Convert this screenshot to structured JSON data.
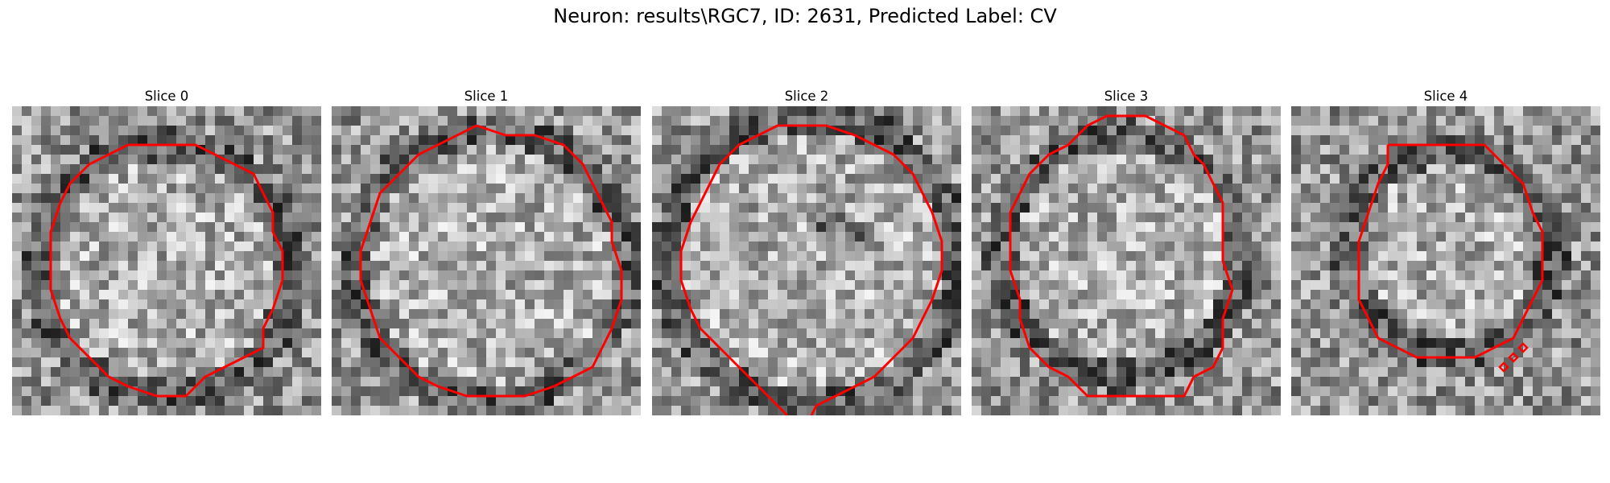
{
  "figure": {
    "title": "Neuron: results\\RGC7, ID: 2631, Predicted Label: CV",
    "contour_color": "#ff0000"
  },
  "panels": [
    {
      "title": "Slice 0"
    },
    {
      "title": "Slice 1"
    },
    {
      "title": "Slice 2"
    },
    {
      "title": "Slice 3"
    },
    {
      "title": "Slice 4"
    }
  ]
}
